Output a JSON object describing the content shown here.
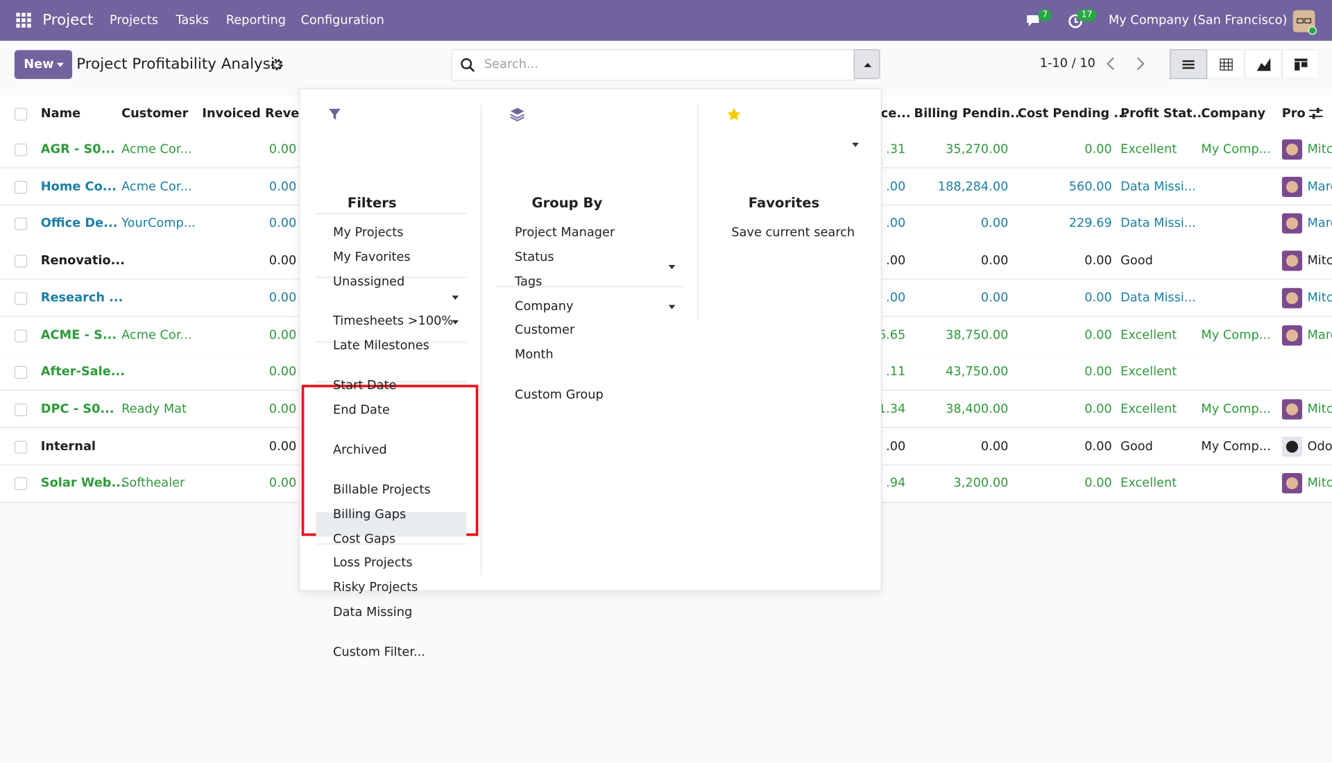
{
  "navbar": {
    "app": "Project",
    "menu": [
      "Projects",
      "Tasks",
      "Reporting",
      "Configuration"
    ],
    "messages_badge": "7",
    "activities_badge": "17",
    "company": "My Company (San Francisco)"
  },
  "control_panel": {
    "new_button": "New",
    "title": "Project Profitability Analysis",
    "search_placeholder": "Search...",
    "pager": "1-10 / 10"
  },
  "table": {
    "headers": [
      "Name",
      "Customer",
      "Invoiced Reve...",
      "ce...",
      "Billing Pendin...",
      "Cost Pending ...",
      "Profit Stat...",
      "Company",
      "Pro"
    ],
    "rows": [
      {
        "color": "#2e9a3a",
        "cells": [
          "AGR - S0...",
          "Acme Cor...",
          "0.00",
          ".31",
          "35,270.00",
          "0.00",
          "Excellent",
          "My Comp...",
          "Mitc"
        ]
      },
      {
        "color": "#1a7fa6",
        "cells": [
          "Home Co...",
          "Acme Cor...",
          "0.00",
          ".00",
          "188,284.00",
          "560.00",
          "Data Missi...",
          null,
          "Marc"
        ]
      },
      {
        "color": "#1a7fa6",
        "cells": [
          "Office De...",
          "YourComp...",
          "0.00",
          ".00",
          "0.00",
          "229.69",
          "Data Missi...",
          null,
          "Marc"
        ]
      },
      {
        "color": "#1f1f1f",
        "cells": [
          "Renovatio...",
          null,
          "0.00",
          ".00",
          "0.00",
          "0.00",
          "Good",
          null,
          "Mitc"
        ]
      },
      {
        "color": "#1a7fa6",
        "cells": [
          "Research ...",
          null,
          "0.00",
          ".00",
          "0.00",
          "0.00",
          "Data Missi...",
          null,
          "Mitc"
        ]
      },
      {
        "color": "#2e9a3a",
        "cells": [
          "ACME - S...",
          "Acme Cor...",
          "0.00",
          "6.65",
          "38,750.00",
          "0.00",
          "Excellent",
          "My Comp...",
          "Marc"
        ]
      },
      {
        "color": "#2e9a3a",
        "cells": [
          "After-Sale...",
          null,
          "0.00",
          ".11",
          "43,750.00",
          "0.00",
          "Excellent",
          null,
          null
        ]
      },
      {
        "color": "#2e9a3a",
        "cells": [
          "DPC - S0...",
          "Ready Mat",
          "0.00",
          "1.34",
          "38,400.00",
          "0.00",
          "Excellent",
          "My Comp...",
          "Mitc"
        ]
      },
      {
        "color": "#1f1f1f",
        "cells": [
          "Internal",
          null,
          "0.00",
          ".00",
          "0.00",
          "0.00",
          "Good",
          "My Comp...",
          "Odo"
        ]
      },
      {
        "color": "#2e9a3a",
        "cells": [
          "Solar Web...",
          "Softhealer",
          "0.00",
          ".94",
          "3,200.00",
          "0.00",
          "Excellent",
          null,
          "Mitc"
        ]
      }
    ]
  },
  "dropdown": {
    "filters": {
      "title": "Filters",
      "groups": [
        [
          "My Projects",
          "My Favorites",
          "Unassigned"
        ],
        [
          "Timesheets >100%",
          "Late Milestones"
        ],
        [
          "Start Date",
          "End Date"
        ],
        [
          "Archived"
        ],
        [
          "Billable Projects",
          "Billing Gaps",
          "Cost Gaps",
          "Loss Projects",
          "Risky Projects",
          "Data Missing"
        ],
        [
          "Custom Filter..."
        ]
      ]
    },
    "group_by": {
      "title": "Group By",
      "groups": [
        [
          "Project Manager",
          "Status",
          "Tags",
          "Company",
          "Customer",
          "Month"
        ],
        [
          "Custom Group"
        ]
      ]
    },
    "favorites": {
      "title": "Favorites",
      "items": [
        "Save current search"
      ]
    }
  }
}
